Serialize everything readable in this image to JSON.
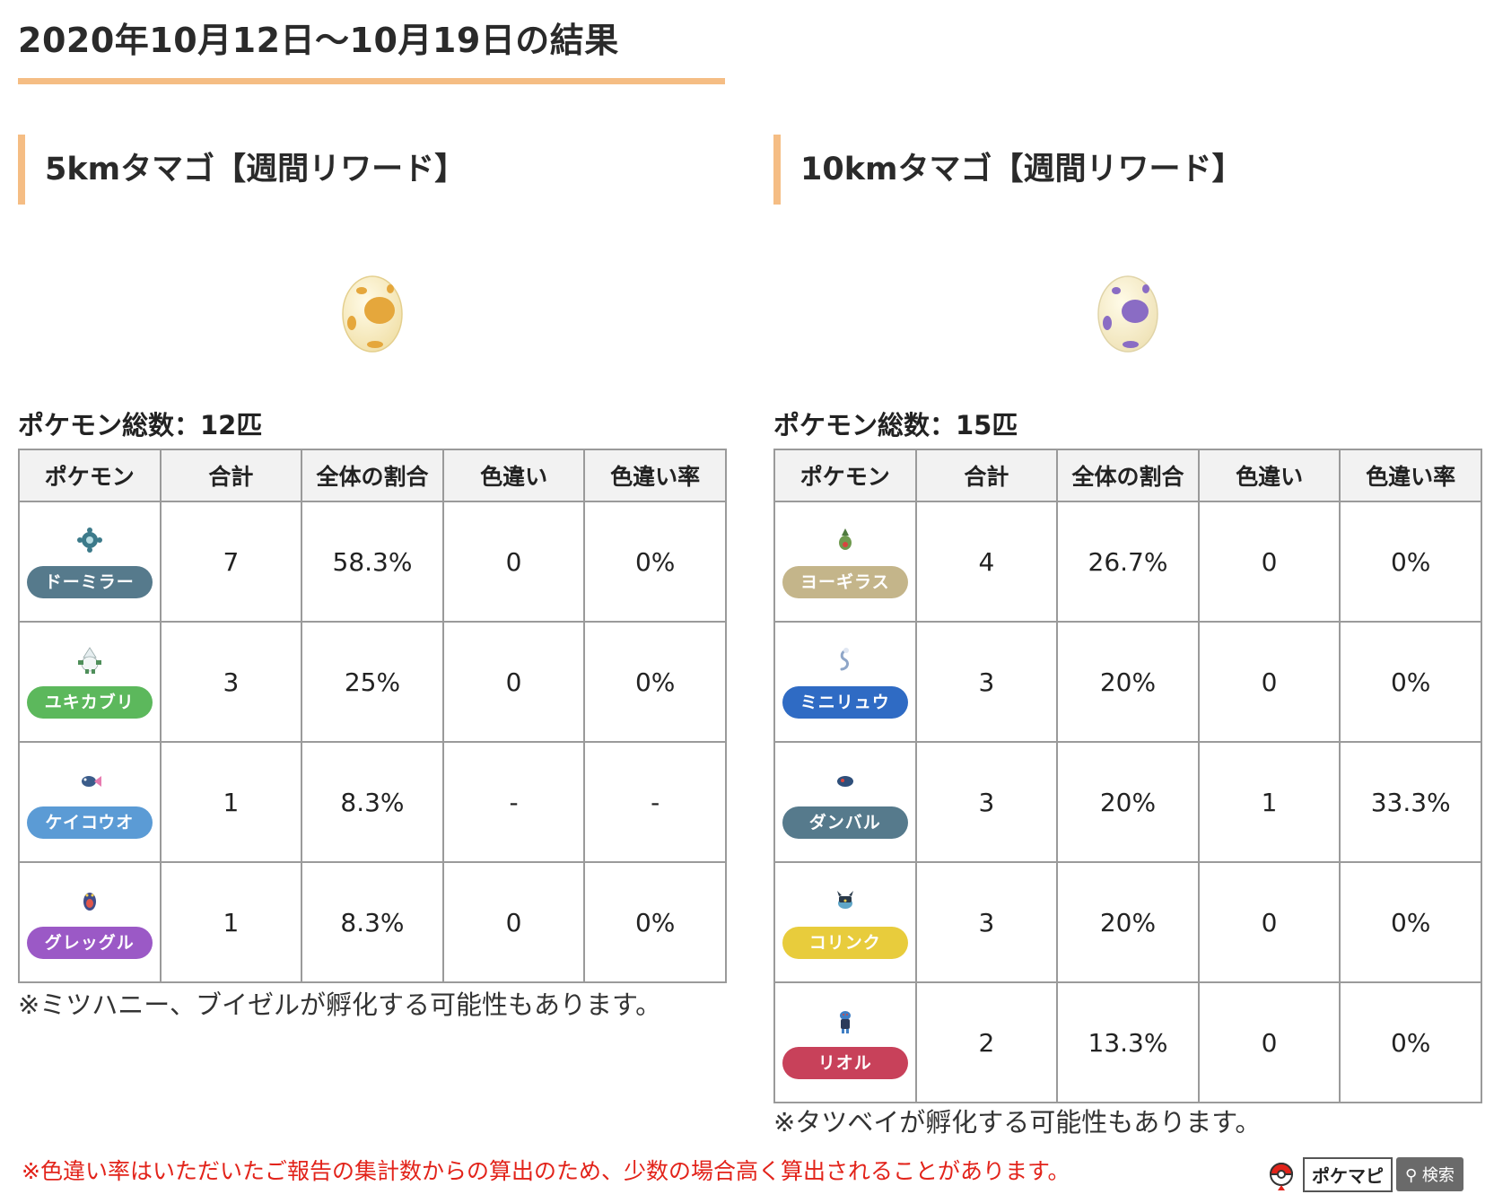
{
  "page_title": "2020年10月12日〜10月19日の結果",
  "headers": [
    "ポケモン",
    "合計",
    "全体の割合",
    "色違い",
    "色違い率"
  ],
  "sections": [
    {
      "title": "5kmタマゴ【週間リワード】",
      "egg": "yellow-spotted-egg",
      "total": "ポケモン総数：12匹",
      "rows": [
        {
          "name": "ドーミラー",
          "badge_color": "#567a8c",
          "sprite": "bronzor-icon",
          "total": "7",
          "ratio": "58.3%",
          "shiny": "0",
          "shiny_rate": "0%"
        },
        {
          "name": "ユキカブリ",
          "badge_color": "#5cb85c",
          "sprite": "snover-icon",
          "total": "3",
          "ratio": "25%",
          "shiny": "0",
          "shiny_rate": "0%"
        },
        {
          "name": "ケイコウオ",
          "badge_color": "#5b9bd5",
          "sprite": "finneon-icon",
          "total": "1",
          "ratio": "8.3%",
          "shiny": "-",
          "shiny_rate": "-"
        },
        {
          "name": "グレッグル",
          "badge_color": "#9b59c6",
          "sprite": "croagunk-icon",
          "total": "1",
          "ratio": "8.3%",
          "shiny": "0",
          "shiny_rate": "0%"
        }
      ],
      "note": "※ミツハニー、ブイゼルが孵化する可能性もあります。"
    },
    {
      "title": "10kmタマゴ【週間リワード】",
      "egg": "purple-spotted-egg",
      "total": "ポケモン総数：15匹",
      "rows": [
        {
          "name": "ヨーギラス",
          "badge_color": "#c4b58a",
          "sprite": "larvitar-icon",
          "total": "4",
          "ratio": "26.7%",
          "shiny": "0",
          "shiny_rate": "0%"
        },
        {
          "name": "ミニリュウ",
          "badge_color": "#2f6bc4",
          "sprite": "dratini-icon",
          "total": "3",
          "ratio": "20%",
          "shiny": "0",
          "shiny_rate": "0%"
        },
        {
          "name": "ダンバル",
          "badge_color": "#567a8c",
          "sprite": "beldum-icon",
          "total": "3",
          "ratio": "20%",
          "shiny": "1",
          "shiny_rate": "33.3%"
        },
        {
          "name": "コリンク",
          "badge_color": "#e8cc3c",
          "sprite": "shinx-icon",
          "total": "3",
          "ratio": "20%",
          "shiny": "0",
          "shiny_rate": "0%"
        },
        {
          "name": "リオル",
          "badge_color": "#c8415a",
          "sprite": "riolu-icon",
          "total": "2",
          "ratio": "13.3%",
          "shiny": "0",
          "shiny_rate": "0%"
        }
      ],
      "note": "※タツベイが孵化する可能性もあります。"
    }
  ],
  "warning": "※色違い率はいただいたご報告の集計数からの算出のため、少数の場合高く算出されることがあります。",
  "brand": {
    "name": "ポケマピ",
    "search": "検索"
  }
}
